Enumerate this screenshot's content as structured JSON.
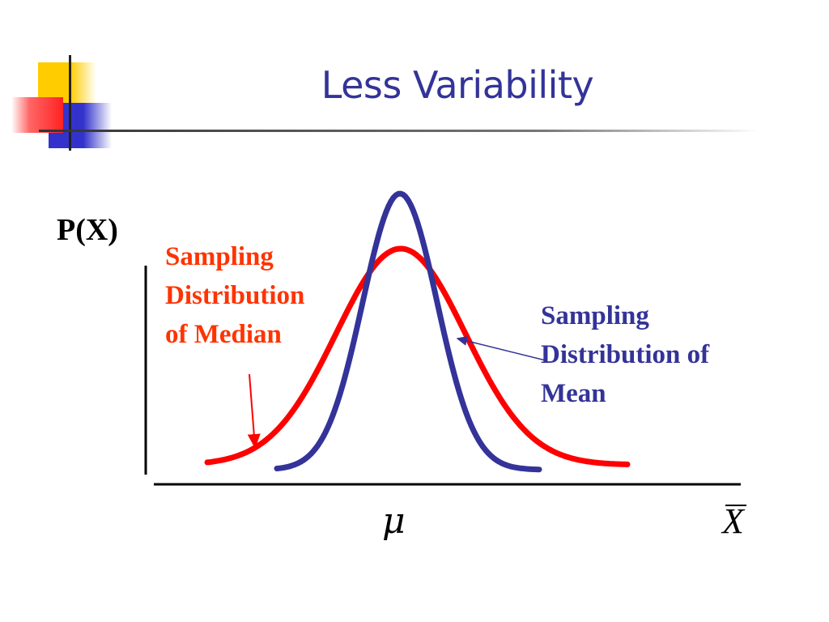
{
  "slide": {
    "title": "Less Variability",
    "y_axis_label": "P(X)",
    "x_axis_center_label": "μ",
    "x_axis_end_label": "X",
    "median_label": [
      "Sampling",
      "Distribution",
      "of Median"
    ],
    "mean_label": [
      "Sampling",
      "Distribution of",
      "Mean"
    ]
  },
  "colors": {
    "title": "#333399",
    "median_curve": "#ff0000",
    "median_text": "#ff3300",
    "mean_curve": "#333399",
    "mean_text": "#333399",
    "deco_yellow": "#ffcc00",
    "deco_red": "#ff3333",
    "deco_blue": "#3333cc"
  },
  "icons": {
    "decoration": "colored-squares-logo",
    "median_pointer": "red-arrow",
    "mean_pointer": "blue-arrow"
  }
}
